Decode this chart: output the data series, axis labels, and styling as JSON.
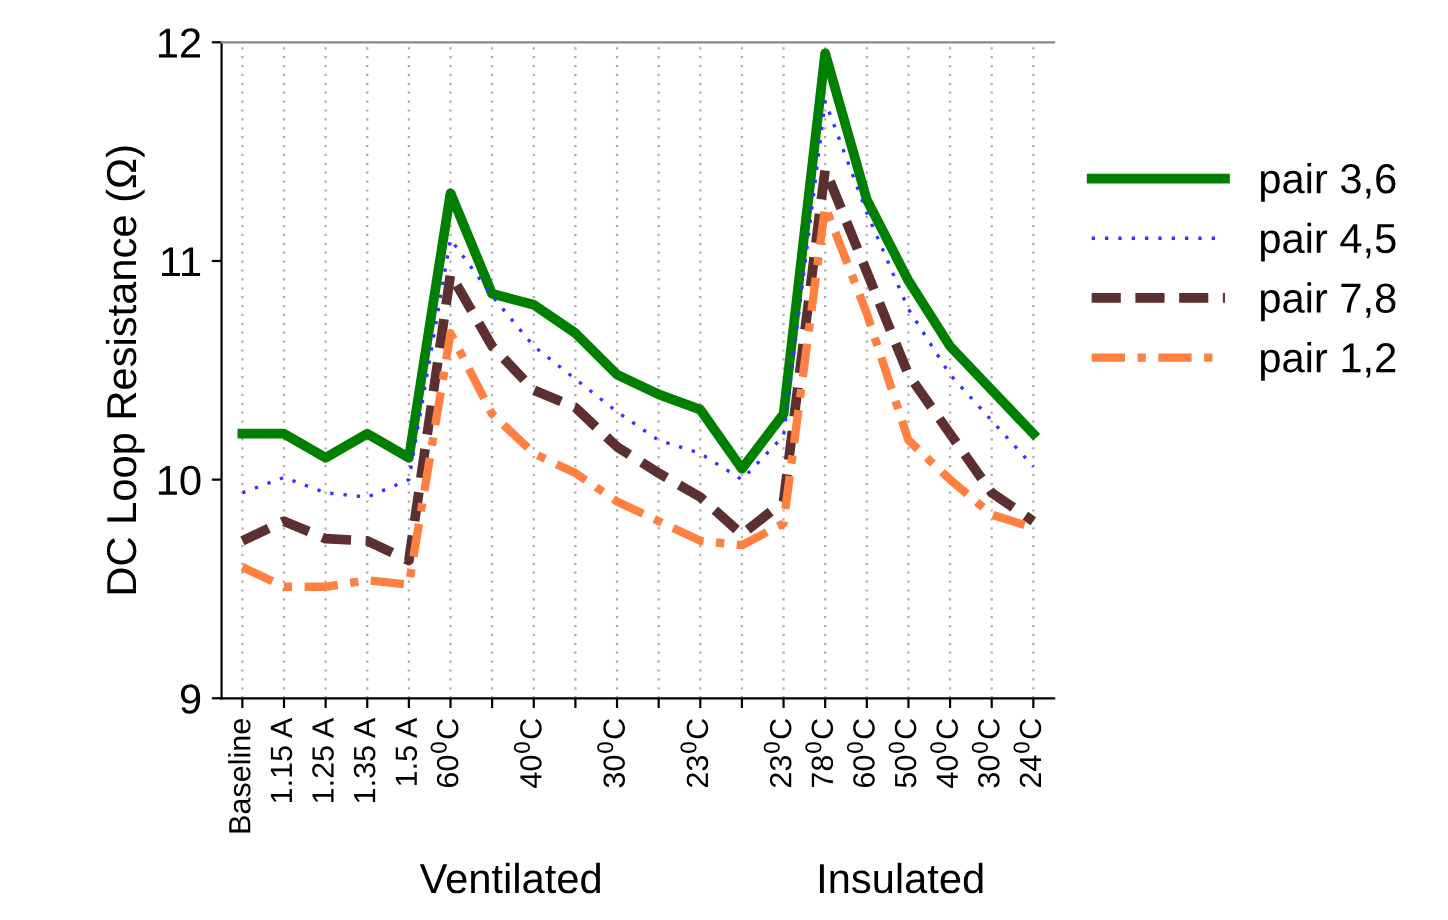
{
  "chart_data": {
    "type": "line",
    "ylabel": "DC Loop Resistance (Ω)",
    "categories": [
      "Baseline",
      "1.15 A",
      "1.25 A",
      "1.35 A",
      "1.5 A",
      "60$^{0}$C",
      null,
      "40$^{0}$C",
      null,
      "30$^{0}$C",
      null,
      "23$^{0}$C",
      null,
      "23$^{0}$C",
      "78$^{0}$C",
      "60$^{0}$C",
      "50$^{0}$C",
      "40$^{0}$C",
      "30$^{0}$C",
      "24$^{0}$C"
    ],
    "series": [
      {
        "name": "pair 3,6",
        "color": "#008000",
        "line_style": "solid",
        "values": [
          10.21,
          10.21,
          10.1,
          10.21,
          10.1,
          11.31,
          10.85,
          10.8,
          10.67,
          10.48,
          10.39,
          10.32,
          10.05,
          10.3,
          11.95,
          11.28,
          10.91,
          10.61,
          10.41,
          10.21
        ]
      },
      {
        "name": "pair 4,5",
        "color": "#3333ff",
        "line_style": "dotted",
        "values": [
          9.94,
          10.01,
          9.94,
          9.92,
          10.0,
          11.1,
          10.84,
          10.61,
          10.46,
          10.31,
          10.18,
          10.12,
          10.0,
          10.2,
          11.73,
          11.22,
          10.78,
          10.48,
          10.27,
          10.06
        ]
      },
      {
        "name": "pair 7,8",
        "color": "#5c3030",
        "line_style": "dashed",
        "values": [
          9.72,
          9.81,
          9.73,
          9.72,
          9.63,
          10.94,
          10.61,
          10.41,
          10.33,
          10.15,
          10.03,
          9.92,
          9.75,
          9.9,
          11.42,
          10.95,
          10.48,
          10.21,
          9.94,
          9.81
        ]
      },
      {
        "name": "pair 1,2",
        "color": "#ff8040",
        "line_style": "dashdot",
        "values": [
          9.6,
          9.51,
          9.51,
          9.54,
          9.52,
          10.67,
          10.3,
          10.12,
          10.03,
          9.9,
          9.81,
          9.72,
          9.7,
          9.8,
          11.25,
          10.76,
          10.18,
          10.0,
          9.84,
          9.78
        ]
      }
    ],
    "ylim": [
      9,
      12
    ],
    "yticks": [
      9,
      10,
      11,
      12
    ],
    "grid": "x",
    "legend": "right",
    "marker": "none",
    "annotations": [
      "Ventilated",
      "Insulated"
    ]
  }
}
